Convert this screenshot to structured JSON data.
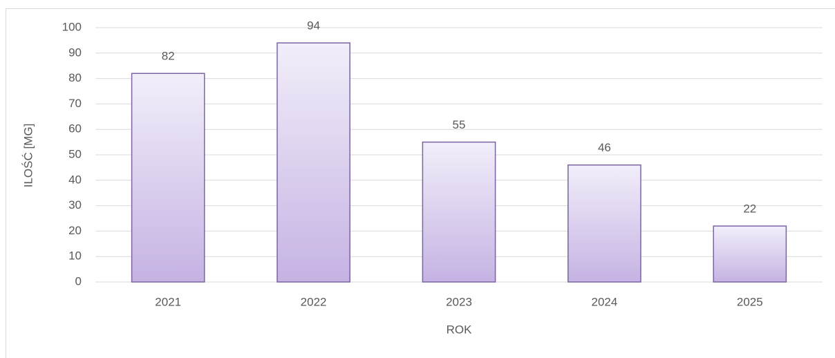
{
  "chart_data": {
    "type": "bar",
    "categories": [
      "2021",
      "2022",
      "2023",
      "2024",
      "2025"
    ],
    "values": [
      82,
      94,
      55,
      46,
      22
    ],
    "x_label": "ROK",
    "y_label": "ILOŚĆ [MG]",
    "color": "#c5b3e3",
    "edge_color": "#7b63a3",
    "ylim": [
      0,
      100
    ],
    "yticks": [
      0,
      10,
      20,
      30,
      40,
      50,
      60,
      70,
      80,
      90,
      100
    ],
    "grid": true
  }
}
